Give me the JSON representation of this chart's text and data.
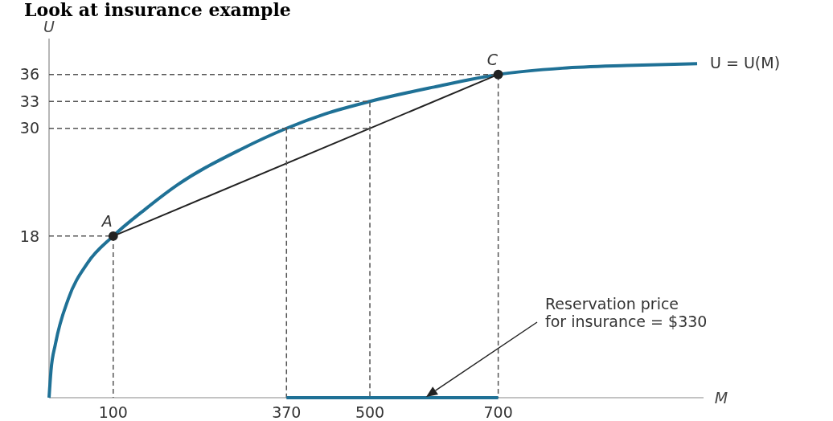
{
  "chart_data": {
    "type": "line",
    "title": "Look at insurance example",
    "xlabel": "M",
    "ylabel": "U",
    "xlim": [
      0,
      1020
    ],
    "ylim": [
      0,
      40
    ],
    "xticks": [
      100,
      370,
      500,
      700
    ],
    "yticks": [
      18,
      30,
      33,
      36
    ],
    "grid": false,
    "series": [
      {
        "name": "U = U(M)",
        "color": "#1f7196",
        "x": [
          0,
          3,
          10,
          30,
          60,
          100,
          150,
          200,
          300,
          370,
          430,
          500,
          600,
          700,
          800,
          900,
          1010
        ],
        "values": [
          0,
          3,
          6,
          11,
          15,
          18,
          21,
          23.7,
          27.7,
          30,
          31.6,
          33,
          34.6,
          36,
          36.7,
          37,
          37.2
        ]
      },
      {
        "color": "#222222",
        "x": [
          100,
          700
        ],
        "values": [
          18,
          36
        ]
      },
      {
        "color": "#555555",
        "line_style": "dashed",
        "x": [
          0,
          100,
          100
        ],
        "values": [
          18,
          18,
          0
        ]
      },
      {
        "color": "#555555",
        "line_style": "dashed",
        "x": [
          0,
          500
        ],
        "values": [
          30,
          30
        ]
      },
      {
        "color": "#555555",
        "line_style": "dashed",
        "x": [
          370,
          370
        ],
        "values": [
          30,
          0
        ]
      },
      {
        "color": "#555555",
        "line_style": "dashed",
        "x": [
          0,
          500,
          500
        ],
        "values": [
          33,
          33,
          0
        ]
      },
      {
        "color": "#555555",
        "line_style": "dashed",
        "x": [
          0,
          700,
          700
        ],
        "values": [
          36,
          36,
          0
        ]
      },
      {
        "color": "#1f7196",
        "x": [
          370,
          700
        ],
        "values": [
          0,
          0
        ]
      },
      {
        "type": "scatter",
        "marker": "circle",
        "color": "#222222",
        "x": [
          100,
          700
        ],
        "values": [
          18,
          36
        ]
      }
    ],
    "annotations": [
      {
        "text": "A",
        "x": 100,
        "y": 18
      },
      {
        "text": "C",
        "x": 700,
        "y": 36
      },
      "Reservation price\nfor insurance = $330"
    ]
  }
}
